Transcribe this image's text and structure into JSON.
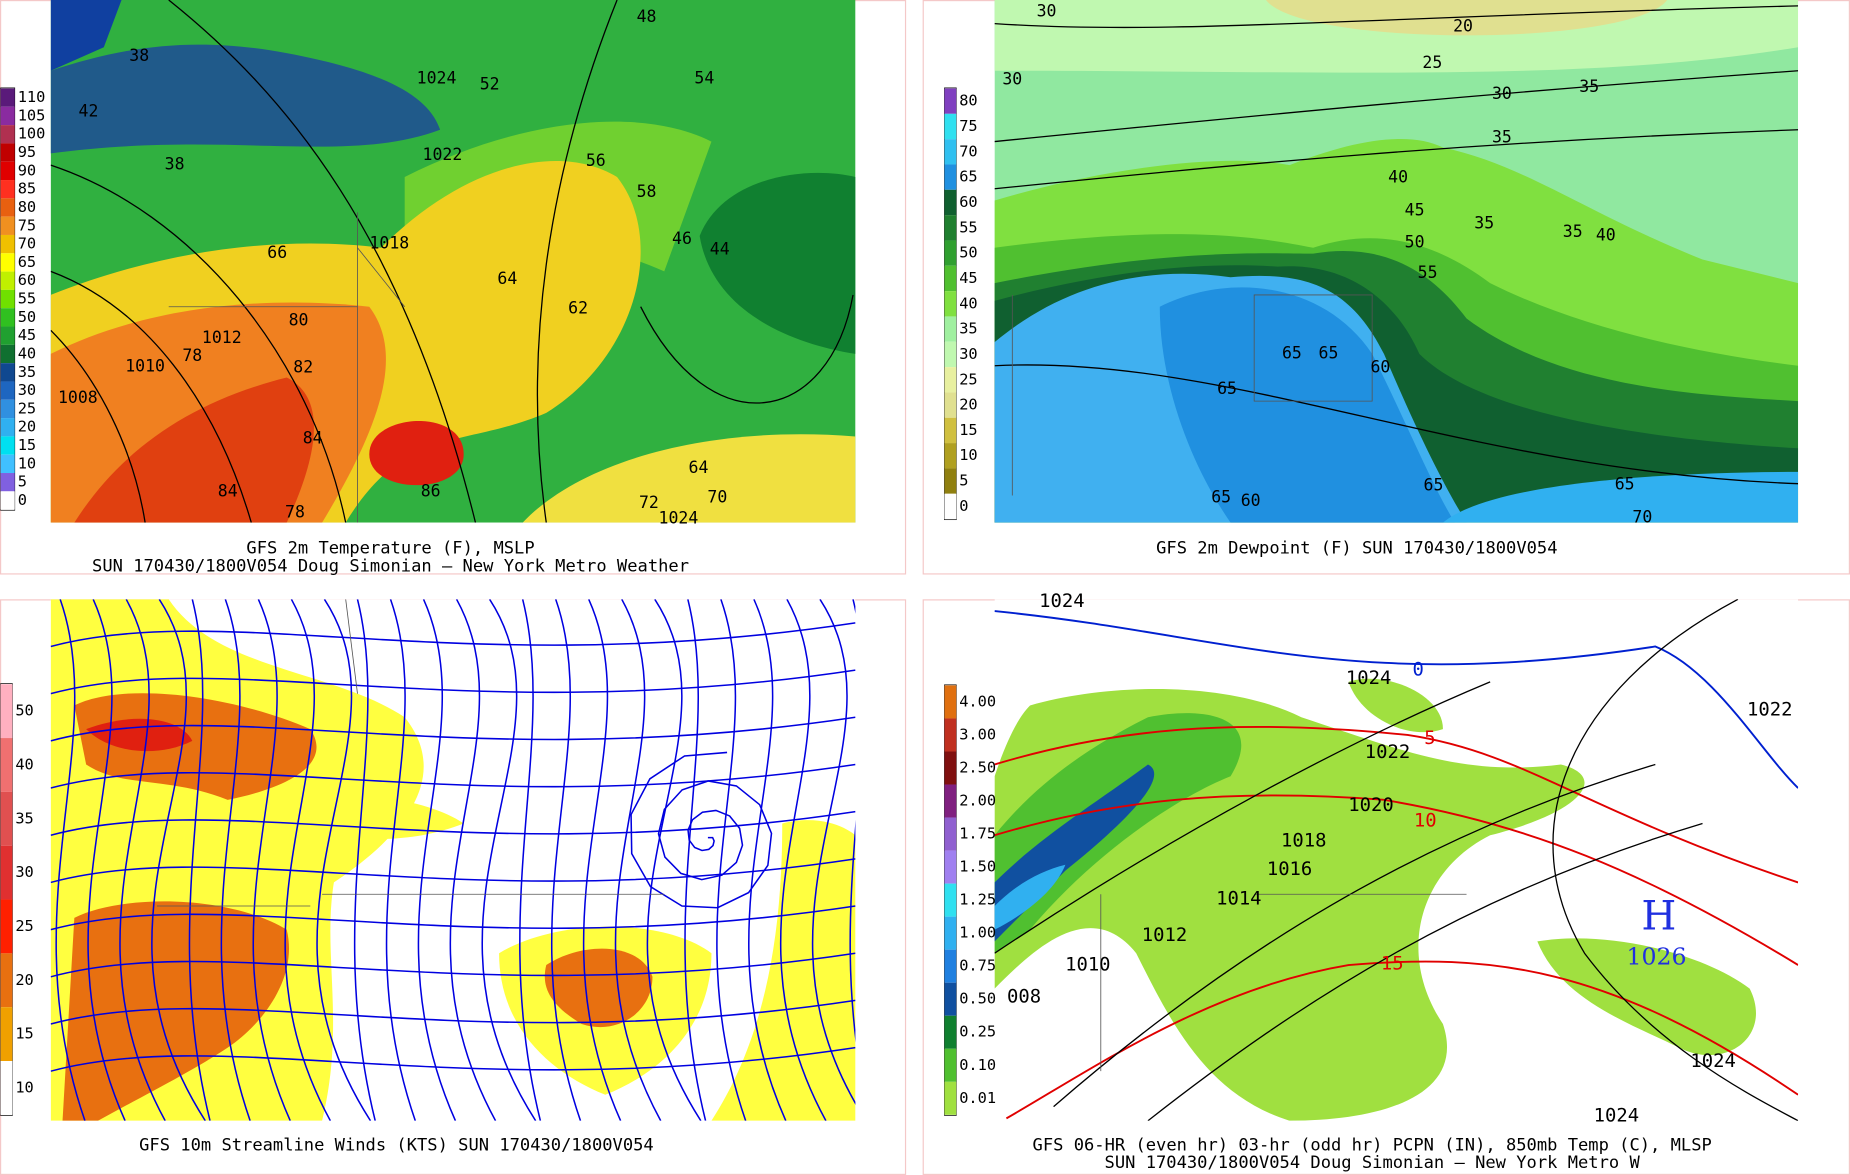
{
  "panels": [
    {
      "caption": [
        "GFS 2m Temperature (F), MSLP",
        "SUN 170430/1800V054 Doug Simonian — New York Metro Weather"
      ],
      "colorbar": {
        "labels": [
          "110",
          "105",
          "100",
          "95",
          "90",
          "85",
          "80",
          "75",
          "70",
          "65",
          "60",
          "55",
          "50",
          "45",
          "40",
          "35",
          "30",
          "25",
          "20",
          "15",
          "10",
          "5",
          "0"
        ],
        "colors": [
          "#5a1a7a",
          "#8a2ba0",
          "#b03050",
          "#c00000",
          "#e00000",
          "#ff3020",
          "#e86010",
          "#f09020",
          "#f0c000",
          "#ffff00",
          "#c0f000",
          "#70e000",
          "#30c020",
          "#20a030",
          "#107030",
          "#104890",
          "#1e66c0",
          "#3090e0",
          "#30b0f0",
          "#00e0f0",
          "#40c0ff",
          "#8060e0",
          "#ffffff"
        ]
      },
      "map_labels": [
        "1024",
        "52",
        "48",
        "54",
        "38",
        "42",
        "38",
        "1022",
        "56",
        "44",
        "1018",
        "58",
        "64",
        "62",
        "66",
        "80",
        "78",
        "82",
        "84",
        "1010",
        "1008",
        "1012",
        "86",
        "84",
        "78",
        "72",
        "70",
        "1024",
        "64",
        "46"
      ]
    },
    {
      "caption": [
        "GFS 2m Dewpoint (F)  SUN 170430/1800V054"
      ],
      "colorbar": {
        "labels": [
          "80",
          "75",
          "70",
          "65",
          "60",
          "55",
          "50",
          "45",
          "40",
          "35",
          "30",
          "25",
          "20",
          "15",
          "10",
          "5",
          "0"
        ],
        "colors": [
          "#8040c0",
          "#30e0f0",
          "#30c0f0",
          "#2090e0",
          "#106030",
          "#208030",
          "#30a030",
          "#50c030",
          "#80e040",
          "#a0f0a0",
          "#c0f8b0",
          "#e8f0a0",
          "#e0e090",
          "#d0c040",
          "#b0a020",
          "#908010",
          "#ffffff"
        ]
      },
      "map_labels": [
        "30",
        "20",
        "25",
        "30",
        "35",
        "35",
        "40",
        "45",
        "50",
        "55",
        "35",
        "35",
        "40",
        "65",
        "65",
        "60",
        "65",
        "65",
        "60",
        "65",
        "65",
        "70",
        "30"
      ]
    },
    {
      "caption": [
        "GFS 10m Streamline Winds (KTS)  SUN 170430/1800V054"
      ],
      "colorbar": {
        "labels": [
          "50",
          "40",
          "35",
          "30",
          "25",
          "20",
          "15",
          "10"
        ],
        "colors": [
          "#ffb0c0",
          "#f07070",
          "#e05050",
          "#e03030",
          "#ff2000",
          "#e87010",
          "#f0a000",
          "#ffffff"
        ]
      }
    },
    {
      "caption": [
        "GFS 06-HR (even hr) 03-hr (odd hr) PCPN (IN), 850mb Temp (C), MLSP",
        "SUN 170430/1800V054 Doug Simonian — New York Metro W"
      ],
      "colorbar": {
        "labels": [
          "4.00",
          "3.00",
          "2.50",
          "2.00",
          "1.75",
          "1.50",
          "1.25",
          "1.00",
          "0.75",
          "0.50",
          "0.25",
          "0.10",
          "0.01"
        ],
        "colors": [
          "#e07010",
          "#c03020",
          "#801010",
          "#802080",
          "#9060d0",
          "#a080f0",
          "#30e0f0",
          "#30b0f0",
          "#2080e0",
          "#1050a0",
          "#108030",
          "#50c030",
          "#a0e040"
        ]
      },
      "map_labels": [
        "1024",
        "0",
        "1024",
        "1022",
        "5",
        "1022",
        "1020",
        "10",
        "1018",
        "1016",
        "1014",
        "1012",
        "1010",
        "008",
        "15",
        "H",
        "1026",
        "1024",
        "1024"
      ]
    }
  ]
}
